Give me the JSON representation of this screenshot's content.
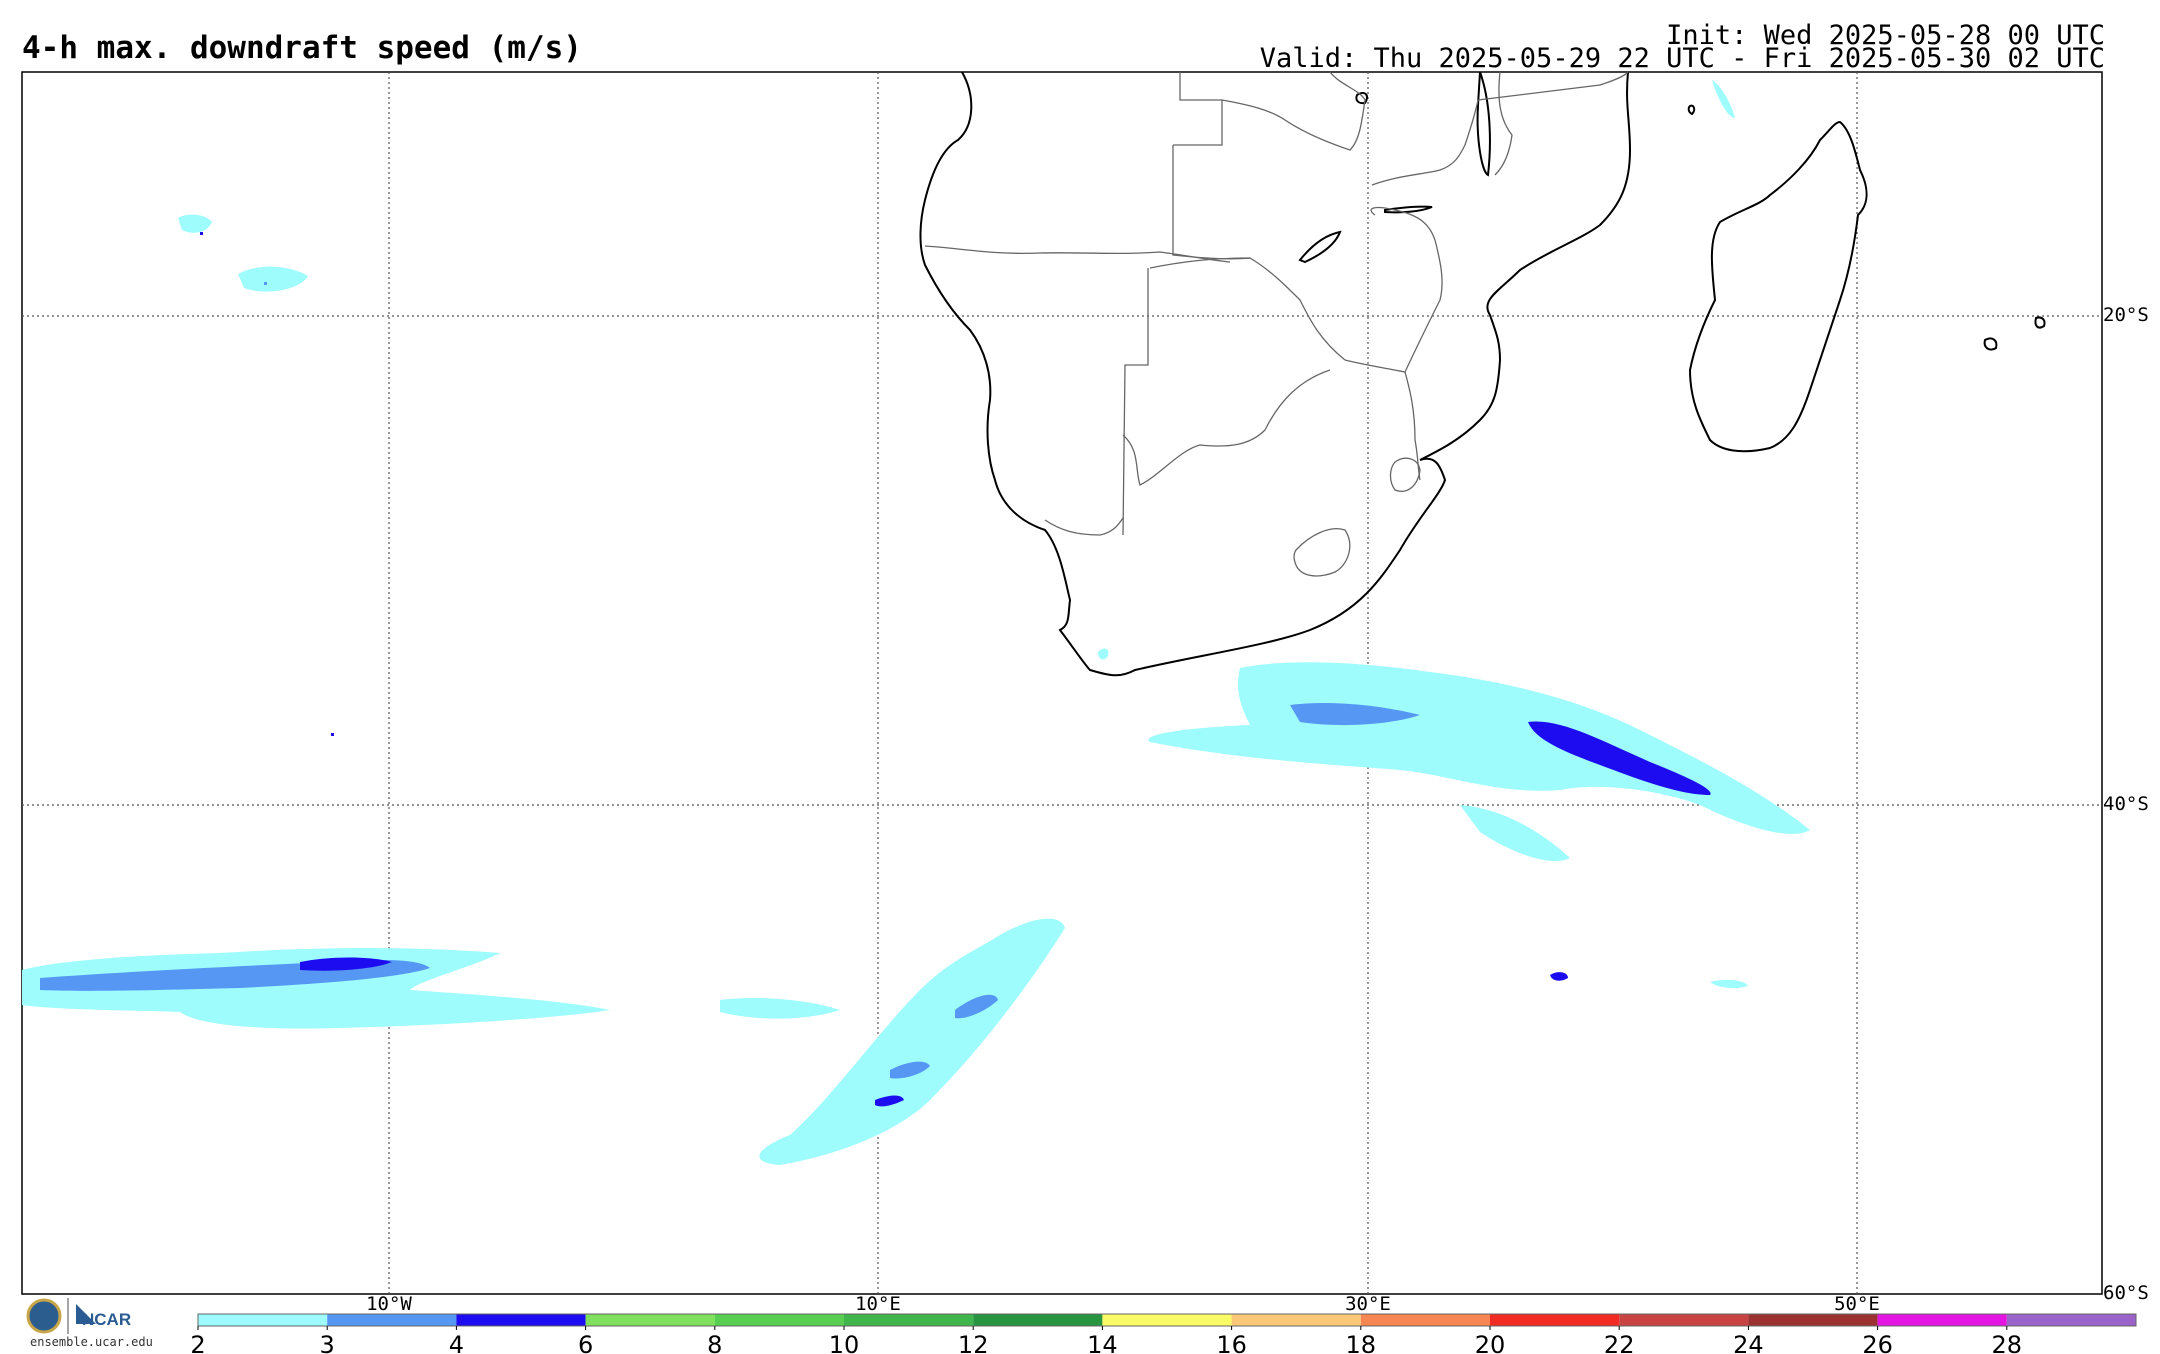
{
  "header": {
    "title": "4-h max. downdraft speed (m/s)",
    "init": "Init: Wed 2025-05-28 00 UTC",
    "valid": "Valid: Thu 2025-05-29 22 UTC - Fri 2025-05-30 02 UTC"
  },
  "map": {
    "lon_labels": [
      "10°W",
      "10°E",
      "30°E",
      "50°E"
    ],
    "lat_labels": [
      "20°S",
      "40°S",
      "60°S"
    ]
  },
  "colorbar": {
    "tick_labels": [
      "2",
      "3",
      "4",
      "6",
      "8",
      "10",
      "12",
      "14",
      "16",
      "18",
      "20",
      "22",
      "24",
      "26",
      "28"
    ],
    "colors": [
      "#9ffcfc",
      "#5597f3",
      "#1d0cf0",
      "#7fe05e",
      "#59cf51",
      "#3fb54b",
      "#279540",
      "#fbfb66",
      "#fbc878",
      "#f88653",
      "#f12b24",
      "#c74443",
      "#9b3131",
      "#e515e1",
      "#9a63cb"
    ]
  },
  "footer": {
    "logo_text": "NCAR",
    "url": "ensemble.ucar.edu"
  }
}
